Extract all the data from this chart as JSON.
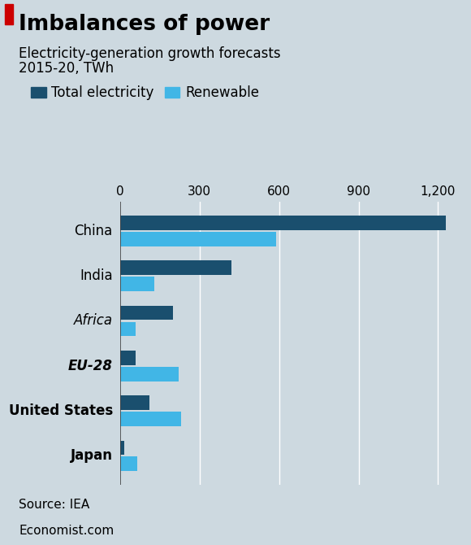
{
  "title": "Imbalances of power",
  "subtitle1": "Electricity-generation growth forecasts",
  "subtitle2": "2015-20, TWh",
  "source": "Source: IEA",
  "footer": "Economist.com",
  "categories": [
    "China",
    "India",
    "Africa",
    "EU-28",
    "United States",
    "Japan"
  ],
  "category_styles": [
    "normal",
    "normal",
    "italic",
    "bold_italic",
    "bold",
    "bold"
  ],
  "total_values": [
    1230,
    420,
    200,
    60,
    110,
    15
  ],
  "renewable_values": [
    590,
    130,
    60,
    220,
    230,
    65
  ],
  "total_color": "#1a4f6e",
  "renewable_color": "#41b6e6",
  "background_color": "#cdd9e0",
  "legend_labels": [
    "Total electricity",
    "Renewable"
  ],
  "xlim": [
    0,
    1280
  ],
  "xticks": [
    0,
    300,
    600,
    900,
    1200
  ],
  "xticklabels": [
    "0",
    "300",
    "600",
    "900",
    "1,200"
  ],
  "bar_height": 0.32,
  "bar_gap": 0.04,
  "title_fontsize": 19,
  "subtitle_fontsize": 12,
  "label_fontsize": 12,
  "tick_fontsize": 11,
  "legend_fontsize": 12,
  "source_fontsize": 11,
  "footer_fontsize": 11
}
